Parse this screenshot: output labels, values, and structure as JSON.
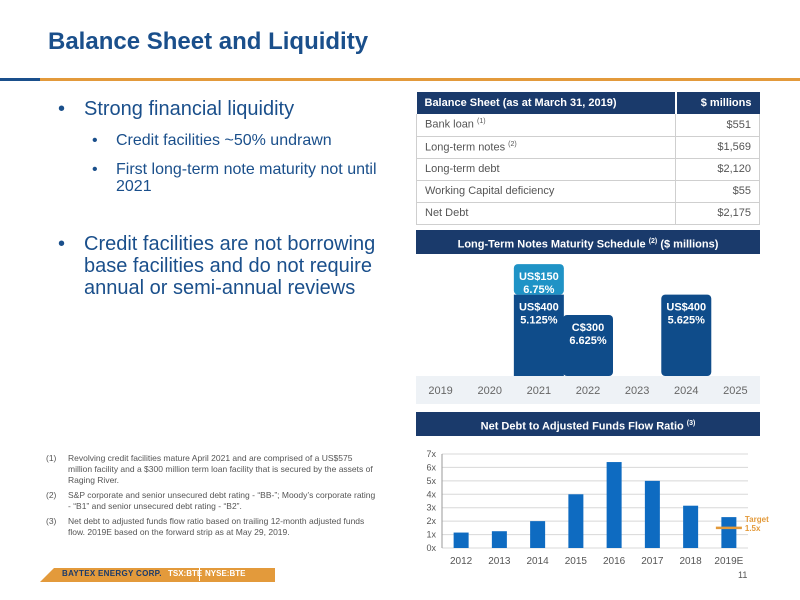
{
  "page": {
    "title": "Balance Sheet and Liquidity",
    "page_number": "11"
  },
  "bullets": {
    "b1": "Strong financial liquidity",
    "b1_sub": [
      "Credit facilities ~50% undrawn",
      "First long-term note maturity not until 2021"
    ],
    "b2": "Credit facilities are not borrowing base facilities and do not require annual or semi-annual reviews"
  },
  "footnotes": [
    {
      "num": "(1)",
      "text": "Revolving credit facilities mature April 2021 and are comprised of a US$575 million facility and a $300 million term loan facility that is secured by the assets of Raging River."
    },
    {
      "num": "(2)",
      "text": "S&P corporate and senior unsecured debt rating - “BB-”; Moody’s corporate rating - “B1” and senior unsecured debt rating - “B2”."
    },
    {
      "num": "(3)",
      "text": "Net debt to adjusted funds flow ratio based on trailing 12-month adjusted funds flow. 2019E based on the forward strip as at May 29, 2019."
    }
  ],
  "footer": {
    "brand": "BAYTEX ENERGY CORP.",
    "tsx": "TSX:BTE",
    "nyse": "NYSE:BTE"
  },
  "balance_sheet": {
    "header_label": "Balance Sheet (as at  March 31, 2019)",
    "header_value": "$ millions",
    "rows": [
      {
        "label": "Bank loan",
        "note": "(1)",
        "value": "$551"
      },
      {
        "label": "Long-term notes",
        "note": "(2)",
        "value": "$1,569"
      },
      {
        "label": "Long-term debt",
        "note": "",
        "value": "$2,120"
      },
      {
        "label": "Working Capital deficiency",
        "note": "",
        "value": "$55"
      },
      {
        "label": "Net Debt",
        "note": "",
        "value": "$2,175"
      }
    ]
  },
  "colors": {
    "navy": "#1a3a6b",
    "dark_blue_bar": "#0f4c8a",
    "teal_bar": "#1f93c6",
    "chart_bar": "#0e6bc1",
    "orange": "#e39a3b"
  },
  "chart_data": [
    {
      "type": "bar",
      "title": "Long-Term Notes Maturity Schedule",
      "title_note": "(2)",
      "title_suffix": "($ millions)",
      "categories": [
        "2019",
        "2020",
        "2021",
        "2022",
        "2023",
        "2024",
        "2025"
      ],
      "stacked": true,
      "series": [
        {
          "values": [
            0,
            0,
            400,
            300,
            0,
            400,
            0
          ],
          "labels": [
            "",
            "",
            "US$400\n5.125%",
            "C$300\n6.625%",
            "",
            "US$400\n5.625%",
            ""
          ]
        },
        {
          "values": [
            0,
            0,
            150,
            0,
            0,
            0,
            0
          ],
          "labels": [
            "",
            "",
            "US$150\n6.75%",
            "",
            "",
            "",
            ""
          ]
        }
      ],
      "ylim": [
        0,
        580
      ]
    },
    {
      "type": "bar",
      "title": "Net Debt to Adjusted Funds Flow Ratio",
      "title_note": "(3)",
      "categories": [
        "2012",
        "2013",
        "2014",
        "2015",
        "2016",
        "2017",
        "2018",
        "2019E"
      ],
      "values": [
        1.15,
        1.25,
        2.0,
        4.0,
        6.4,
        5.0,
        3.15,
        2.3
      ],
      "yticks": [
        "0x",
        "1x",
        "2x",
        "3x",
        "4x",
        "5x",
        "6x",
        "7x"
      ],
      "ylim": [
        0,
        7
      ],
      "target": {
        "value": 1.5,
        "label": "Target\n1.5x"
      },
      "grid": true
    }
  ]
}
